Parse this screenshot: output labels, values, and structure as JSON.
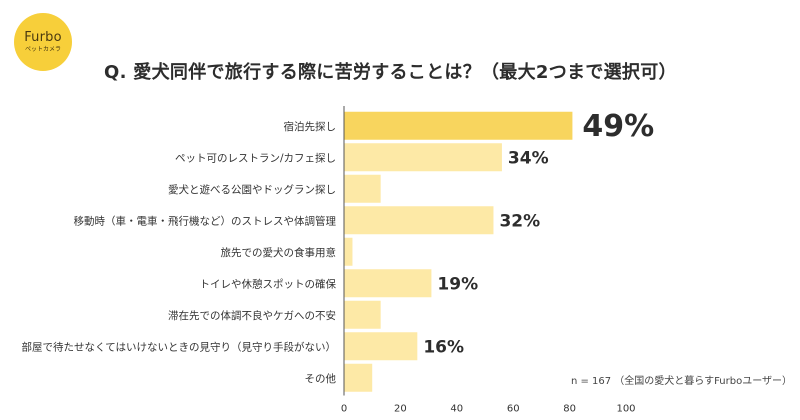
{
  "logo": {
    "name": "Furbo",
    "subtitle": "ペットカメラ",
    "color": "#f7cf3a"
  },
  "title": "Q. 愛犬同伴で旅行する際に苦労することは？（最大2つまで選択可）",
  "note": "n = 167 （全国の愛犬と暮らすFurboユーザー）",
  "colors": {
    "highlight": "#f8d55e",
    "bar": "#fde9a6"
  },
  "chart_data": {
    "type": "bar",
    "orientation": "horizontal",
    "categories": [
      "宿泊先探し",
      "ペット可のレストラン/カフェ探し",
      "愛犬と遊べる公園やドッグラン探し",
      "移動時（車・電車・飛行機など）のストレスや体調管理",
      "旅先での愛犬の食事用意",
      "トイレや休憩スポットの確保",
      "滞在先での体調不良やケガへの不安",
      "部屋で待たせなくてはいけないときの見守り（見守り手段がない）",
      "その他"
    ],
    "values": [
      81,
      56,
      13,
      53,
      3,
      31,
      13,
      26,
      10
    ],
    "data_labels": [
      "49%",
      "34%",
      "",
      "32%",
      "",
      "19%",
      "",
      "16%",
      ""
    ],
    "highlight_index": 0,
    "xlim": [
      0,
      100
    ],
    "xticks": [
      0,
      20,
      40,
      60,
      80,
      100
    ],
    "grid": false
  }
}
